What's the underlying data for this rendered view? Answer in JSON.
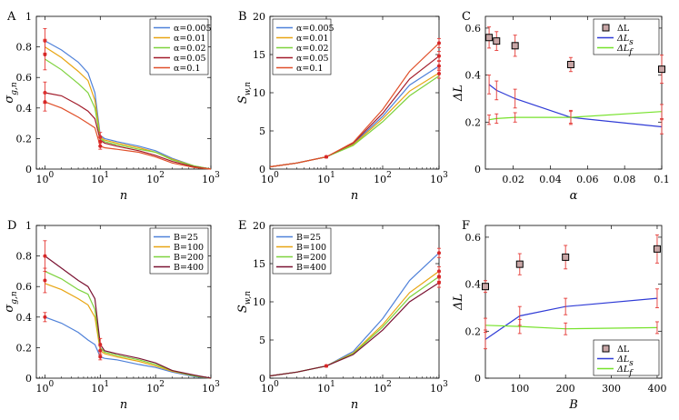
{
  "figure": {
    "panels": [
      "A",
      "B",
      "C",
      "D",
      "E",
      "F"
    ]
  },
  "chart_data": [
    {
      "id": "A",
      "type": "line",
      "xscale": "log",
      "xlim": [
        0.7,
        1000
      ],
      "ylim": [
        0,
        1
      ],
      "yticks": [
        0,
        0.2,
        0.4,
        0.6,
        0.8,
        1
      ],
      "ytick_labels": [
        "0",
        "0.2",
        "0.4",
        "0.6",
        "0.8",
        "1"
      ],
      "xticks": [
        1,
        10,
        100,
        1000
      ],
      "xtick_labels": [
        "10^0",
        "10^1",
        "10^2",
        "10^3"
      ],
      "xlabel": "n",
      "ylabel": "σ_{g,n}",
      "legend_pos": "top-right",
      "series": [
        {
          "name": "α=0.005",
          "color": "#4f81d9",
          "x": [
            1,
            2,
            4,
            6,
            8,
            10,
            12,
            20,
            50,
            100,
            200,
            500,
            1000
          ],
          "y": [
            0.84,
            0.78,
            0.7,
            0.63,
            0.5,
            0.22,
            0.2,
            0.18,
            0.15,
            0.12,
            0.07,
            0.02,
            0.0
          ]
        },
        {
          "name": "α=0.01",
          "color": "#e8a512",
          "x": [
            1,
            2,
            4,
            6,
            8,
            10,
            12,
            20,
            50,
            100,
            200,
            500,
            1000
          ],
          "y": [
            0.8,
            0.73,
            0.64,
            0.58,
            0.45,
            0.21,
            0.19,
            0.17,
            0.14,
            0.11,
            0.065,
            0.02,
            0.0
          ]
        },
        {
          "name": "α=0.02",
          "color": "#7ed23d",
          "x": [
            1,
            2,
            4,
            6,
            8,
            10,
            12,
            20,
            50,
            100,
            200,
            500,
            1000
          ],
          "y": [
            0.72,
            0.65,
            0.56,
            0.5,
            0.4,
            0.2,
            0.18,
            0.16,
            0.13,
            0.11,
            0.06,
            0.02,
            0.0
          ]
        },
        {
          "name": "α=0.05",
          "color": "#a21b2a",
          "x": [
            1,
            2,
            4,
            6,
            8,
            10,
            12,
            20,
            50,
            100,
            200,
            500,
            1000
          ],
          "y": [
            0.5,
            0.48,
            0.42,
            0.38,
            0.33,
            0.19,
            0.17,
            0.15,
            0.12,
            0.09,
            0.05,
            0.015,
            0.0
          ]
        },
        {
          "name": "α=0.1",
          "color": "#e0502a",
          "x": [
            1,
            2,
            4,
            6,
            8,
            10,
            12,
            20,
            50,
            100,
            200,
            500,
            1000
          ],
          "y": [
            0.44,
            0.4,
            0.34,
            0.3,
            0.27,
            0.15,
            0.14,
            0.13,
            0.11,
            0.08,
            0.04,
            0.01,
            0.0
          ]
        }
      ],
      "errorbars": [
        {
          "x": 1,
          "y": 0.84,
          "err": 0.08
        },
        {
          "x": 1,
          "y": 0.75,
          "err": 0.1
        },
        {
          "x": 1,
          "y": 0.5,
          "err": 0.07
        },
        {
          "x": 1,
          "y": 0.44,
          "err": 0.06
        },
        {
          "x": 10,
          "y": 0.21,
          "err": 0.03
        },
        {
          "x": 10,
          "y": 0.18,
          "err": 0.03
        },
        {
          "x": 10,
          "y": 0.15,
          "err": 0.02
        }
      ],
      "legend_entries": [
        "α=0.005",
        "α=0.01",
        "α=0.02",
        "α=0.05",
        "α=0.1"
      ]
    },
    {
      "id": "B",
      "type": "line",
      "xscale": "log",
      "xlim": [
        1,
        1000
      ],
      "ylim": [
        0,
        20
      ],
      "yticks": [
        0,
        5,
        10,
        15,
        20
      ],
      "ytick_labels": [
        "0",
        "5",
        "10",
        "15",
        "20"
      ],
      "xticks": [
        1,
        10,
        100,
        1000
      ],
      "xtick_labels": [
        "10^0",
        "10^1",
        "10^2",
        "10^3"
      ],
      "xlabel": "n",
      "ylabel": "S_{w,n}",
      "legend_pos": "top-left",
      "series": [
        {
          "name": "α=0.005",
          "color": "#4f81d9",
          "x": [
            1,
            3,
            10,
            30,
            100,
            300,
            1000
          ],
          "y": [
            0.3,
            0.8,
            1.6,
            3.3,
            6.9,
            11.0,
            13.5
          ]
        },
        {
          "name": "α=0.01",
          "color": "#e8a512",
          "x": [
            1,
            3,
            10,
            30,
            100,
            300,
            1000
          ],
          "y": [
            0.3,
            0.8,
            1.6,
            3.2,
            6.6,
            10.2,
            12.6
          ]
        },
        {
          "name": "α=0.02",
          "color": "#7ed23d",
          "x": [
            1,
            3,
            10,
            30,
            100,
            300,
            1000
          ],
          "y": [
            0.3,
            0.8,
            1.6,
            3.1,
            6.2,
            9.6,
            12.2
          ]
        },
        {
          "name": "α=0.05",
          "color": "#a21b2a",
          "x": [
            1,
            3,
            10,
            30,
            100,
            300,
            1000
          ],
          "y": [
            0.3,
            0.8,
            1.6,
            3.4,
            7.3,
            11.8,
            14.8
          ]
        },
        {
          "name": "α=0.1",
          "color": "#e0502a",
          "x": [
            1,
            3,
            10,
            30,
            100,
            300,
            1000
          ],
          "y": [
            0.3,
            0.8,
            1.6,
            3.5,
            7.8,
            12.8,
            16.5
          ]
        }
      ],
      "errorbars": [
        {
          "x": 10,
          "y": 1.6,
          "err": 0.15
        },
        {
          "x": 1000,
          "y": 16.5,
          "err": 0.6
        },
        {
          "x": 1000,
          "y": 14.8,
          "err": 0.6
        },
        {
          "x": 1000,
          "y": 13.5,
          "err": 0.6
        },
        {
          "x": 1000,
          "y": 12.5,
          "err": 0.6
        }
      ],
      "legend_entries": [
        "α=0.005",
        "α=0.01",
        "α=0.02",
        "α=0.05",
        "α=0.1"
      ]
    },
    {
      "id": "C",
      "type": "line",
      "xscale": "linear",
      "xlim": [
        0.005,
        0.1
      ],
      "ylim": [
        0,
        0.65
      ],
      "yticks": [
        0,
        0.2,
        0.4,
        0.6
      ],
      "ytick_labels": [
        "0",
        "0.2",
        "0.4",
        "0.6"
      ],
      "xticks": [
        0.02,
        0.04,
        0.06,
        0.08,
        0.1
      ],
      "xtick_labels": [
        "0.02",
        "0.04",
        "0.06",
        "0.08",
        "0.1"
      ],
      "xlabel": "α",
      "ylabel": "ΔL",
      "legend_pos": "top-right",
      "markers": {
        "name": "ΔL",
        "x": [
          0.007,
          0.011,
          0.021,
          0.051,
          0.1
        ],
        "y": [
          0.56,
          0.545,
          0.525,
          0.445,
          0.425
        ],
        "err": [
          0.045,
          0.04,
          0.045,
          0.03,
          0.06
        ]
      },
      "series": [
        {
          "name": "ΔL_s",
          "color": "#2f3bd6",
          "x": [
            0.007,
            0.011,
            0.021,
            0.051,
            0.1
          ],
          "y": [
            0.36,
            0.335,
            0.3,
            0.22,
            0.18
          ],
          "err": [
            0.04,
            0.04,
            0.04,
            0.03,
            0.03
          ]
        },
        {
          "name": "ΔL_f",
          "color": "#76e22b",
          "x": [
            0.007,
            0.011,
            0.021,
            0.051,
            0.1
          ],
          "y": [
            0.21,
            0.215,
            0.22,
            0.22,
            0.245
          ],
          "err": [
            0.02,
            0.02,
            0.02,
            0.025,
            0.03
          ]
        }
      ],
      "legend_entries": [
        "ΔL",
        "ΔL_s",
        "ΔL_f"
      ]
    },
    {
      "id": "D",
      "type": "line",
      "xscale": "log",
      "xlim": [
        0.7,
        1000
      ],
      "ylim": [
        0,
        1
      ],
      "yticks": [
        0,
        0.2,
        0.4,
        0.6,
        0.8,
        1
      ],
      "ytick_labels": [
        "0",
        "0.2",
        "0.4",
        "0.6",
        "0.8",
        "1"
      ],
      "xticks": [
        1,
        10,
        100,
        1000
      ],
      "xtick_labels": [
        "10^0",
        "10^1",
        "10^2",
        "10^3"
      ],
      "xlabel": "n",
      "ylabel": "σ_{g,n}",
      "legend_pos": "top-right",
      "series": [
        {
          "name": "B=25",
          "color": "#4f81d9",
          "x": [
            1,
            2,
            4,
            6,
            8,
            10,
            12,
            20,
            50,
            100,
            200,
            500,
            1000
          ],
          "y": [
            0.4,
            0.36,
            0.3,
            0.25,
            0.22,
            0.14,
            0.13,
            0.12,
            0.09,
            0.07,
            0.04,
            0.01,
            0.0
          ]
        },
        {
          "name": "B=100",
          "color": "#e8a512",
          "x": [
            1,
            2,
            4,
            6,
            8,
            10,
            12,
            20,
            50,
            100,
            200,
            500,
            1000
          ],
          "y": [
            0.62,
            0.58,
            0.52,
            0.48,
            0.4,
            0.18,
            0.16,
            0.14,
            0.11,
            0.08,
            0.045,
            0.015,
            0.0
          ]
        },
        {
          "name": "B=200",
          "color": "#7ed23d",
          "x": [
            1,
            2,
            4,
            6,
            8,
            10,
            12,
            20,
            50,
            100,
            200,
            500,
            1000
          ],
          "y": [
            0.7,
            0.65,
            0.58,
            0.55,
            0.45,
            0.2,
            0.17,
            0.15,
            0.12,
            0.09,
            0.05,
            0.015,
            0.0
          ]
        },
        {
          "name": "B=400",
          "color": "#7a1232",
          "x": [
            1,
            2,
            4,
            6,
            8,
            10,
            12,
            20,
            50,
            100,
            200,
            500,
            1000
          ],
          "y": [
            0.8,
            0.72,
            0.64,
            0.6,
            0.52,
            0.22,
            0.18,
            0.16,
            0.13,
            0.1,
            0.05,
            0.02,
            0.0
          ]
        }
      ],
      "errorbars": [
        {
          "x": 1,
          "y": 0.8,
          "err": 0.1
        },
        {
          "x": 1,
          "y": 0.64,
          "err": 0.08
        },
        {
          "x": 1,
          "y": 0.4,
          "err": 0.03
        },
        {
          "x": 10,
          "y": 0.22,
          "err": 0.04
        },
        {
          "x": 10,
          "y": 0.18,
          "err": 0.03
        },
        {
          "x": 10,
          "y": 0.14,
          "err": 0.02
        }
      ],
      "legend_entries": [
        "B=25",
        "B=100",
        "B=200",
        "B=400"
      ]
    },
    {
      "id": "E",
      "type": "line",
      "xscale": "log",
      "xlim": [
        1,
        1000
      ],
      "ylim": [
        0,
        20
      ],
      "yticks": [
        0,
        5,
        10,
        15,
        20
      ],
      "ytick_labels": [
        "0",
        "5",
        "10",
        "15",
        "20"
      ],
      "xticks": [
        1,
        10,
        100,
        1000
      ],
      "xtick_labels": [
        "10^0",
        "10^1",
        "10^2",
        "10^3"
      ],
      "xlabel": "n",
      "ylabel": "S_{w,n}",
      "legend_pos": "top-left",
      "series": [
        {
          "name": "B=25",
          "color": "#4f81d9",
          "x": [
            1,
            3,
            10,
            30,
            100,
            300,
            1000
          ],
          "y": [
            0.3,
            0.8,
            1.6,
            3.5,
            7.8,
            12.8,
            16.4
          ]
        },
        {
          "name": "B=100",
          "color": "#e8a512",
          "x": [
            1,
            3,
            10,
            30,
            100,
            300,
            1000
          ],
          "y": [
            0.3,
            0.8,
            1.6,
            3.3,
            7.0,
            11.2,
            14.0
          ]
        },
        {
          "name": "B=200",
          "color": "#7ed23d",
          "x": [
            1,
            3,
            10,
            30,
            100,
            300,
            1000
          ],
          "y": [
            0.3,
            0.8,
            1.6,
            3.2,
            6.7,
            10.6,
            13.3
          ]
        },
        {
          "name": "B=400",
          "color": "#7a1232",
          "x": [
            1,
            3,
            10,
            30,
            100,
            300,
            1000
          ],
          "y": [
            0.3,
            0.8,
            1.6,
            3.1,
            6.3,
            10.0,
            12.5
          ]
        }
      ],
      "errorbars": [
        {
          "x": 10,
          "y": 1.6,
          "err": 0.15
        },
        {
          "x": 1000,
          "y": 16.4,
          "err": 0.6
        },
        {
          "x": 1000,
          "y": 14.0,
          "err": 0.6
        },
        {
          "x": 1000,
          "y": 13.3,
          "err": 0.6
        },
        {
          "x": 1000,
          "y": 12.5,
          "err": 0.6
        }
      ],
      "legend_entries": [
        "B=25",
        "B=100",
        "B=200",
        "B=400"
      ]
    },
    {
      "id": "F",
      "type": "line",
      "xscale": "linear",
      "xlim": [
        25,
        410
      ],
      "ylim": [
        0,
        0.65
      ],
      "yticks": [
        0,
        0.2,
        0.4,
        0.6
      ],
      "ytick_labels": [
        "0",
        "0.2",
        "0.4",
        "0.6"
      ],
      "xticks": [
        100,
        200,
        300,
        400
      ],
      "xtick_labels": [
        "100",
        "200",
        "300",
        "400"
      ],
      "xlabel": "B",
      "ylabel": "ΔL",
      "legend_pos": "bottom-right",
      "markers": {
        "name": "ΔL",
        "x": [
          25,
          100,
          200,
          400
        ],
        "y": [
          0.39,
          0.485,
          0.515,
          0.55
        ],
        "err": [
          0.025,
          0.045,
          0.05,
          0.06
        ]
      },
      "series": [
        {
          "name": "ΔL_s",
          "color": "#2f3bd6",
          "x": [
            25,
            100,
            200,
            400
          ],
          "y": [
            0.165,
            0.265,
            0.305,
            0.34
          ],
          "err": [
            0.04,
            0.04,
            0.035,
            0.04
          ]
        },
        {
          "name": "ΔL_f",
          "color": "#76e22b",
          "x": [
            25,
            100,
            200,
            400
          ],
          "y": [
            0.225,
            0.22,
            0.21,
            0.215
          ],
          "err": [
            0.03,
            0.03,
            0.025,
            0.025
          ]
        }
      ],
      "legend_entries": [
        "ΔL",
        "ΔL_s",
        "ΔL_f"
      ]
    }
  ]
}
